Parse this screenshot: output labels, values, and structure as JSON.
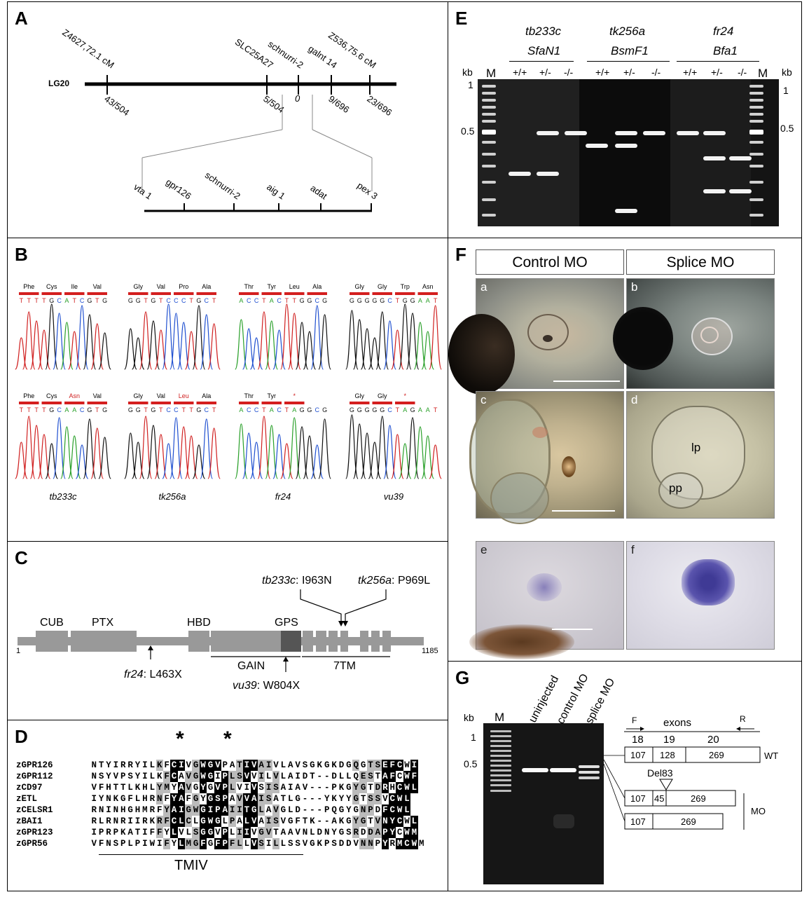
{
  "panelA": {
    "label": "A",
    "lg": "LG20",
    "topMarkers": [
      "Z4627,72.1 cM",
      "SLC25A27",
      "schnurri-2",
      "galnt 14",
      "Z536,75.6 cM"
    ],
    "bottomValues": [
      "43/504",
      "5/504",
      "0",
      "9/696",
      "23/696"
    ],
    "zoomGenes": [
      "vta 1",
      "gpr126",
      "schnurri-2",
      "aig 1",
      "adat",
      "pex 3"
    ]
  },
  "panelB": {
    "label": "B",
    "wtCodons": [
      [
        "Phe",
        "Cys",
        "Ile",
        "Val"
      ],
      [
        "Gly",
        "Val",
        "Pro",
        "Ala"
      ],
      [
        "Thr",
        "Tyr",
        "Leu",
        "Ala"
      ],
      [
        "Gly",
        "Gly",
        "Trp",
        "Asn"
      ]
    ],
    "wtSeqs": [
      "TTTTGCATCGTG",
      "GGTGTCCCTGCT",
      "ACCTACTTGGCG",
      "GGGGGCTGGAAT"
    ],
    "mutCodons": [
      [
        "Phe",
        "Cys",
        "Asn",
        "Val"
      ],
      [
        "Gly",
        "Val",
        "Leu",
        "Ala"
      ],
      [
        "Thr",
        "Tyr",
        "*"
      ],
      [
        "Gly",
        "Gly",
        "*"
      ]
    ],
    "mutSeqs": [
      "TTTTGCAACGTG",
      "GGTGTCCTTGCT",
      "ACCTACTAGGCG",
      "GGGGGCTAGAAT"
    ],
    "alleles": [
      "tb233c",
      "tk256a",
      "fr24",
      "vu39"
    ]
  },
  "panelC": {
    "label": "C",
    "domains": [
      "CUB",
      "PTX",
      "HBD",
      "GPS"
    ],
    "start": "1",
    "end": "1185",
    "gain": "GAIN",
    "tm": "7TM",
    "mut1_allele": "tb233c",
    "mut1_change": ": I963N",
    "mut2_allele": "tk256a",
    "mut2_change": ": P969L",
    "mut3_allele": "fr24",
    "mut3_change": ": L463X",
    "mut4_allele": "vu39",
    "mut4_change": ": W804X"
  },
  "panelD": {
    "label": "D",
    "rows": [
      {
        "name": "zGPR126",
        "seq": "NTYIRRYILKFCIVGWGVPATIVAIVLAVSGKGKDGQGTSEFCWI"
      },
      {
        "name": "zGPR112",
        "seq": "NSYVPSYILKFCAVGWGIPLSVVILVLAIDT--DLLQESTAFCWF"
      },
      {
        "name": "zCD97",
        "seq": "VFHTTLKHLYMYAVGYGVPLVIVSISAIAV---PKGYGTDRHCWL"
      },
      {
        "name": "zETL",
        "seq": "IYNKGFLHRNFYAFGYGSPAVVAISATLG---YKYYGTSSVCWL"
      },
      {
        "name": "zCELSR1",
        "seq": "RNINHGHMRFYAIGWGIPAIITGLAVGLD---PQGYGNPDFCWL"
      },
      {
        "name": "zBAI1",
        "seq": "RLRNRIIRKRFCLCLGWGLPALVAISVGFTK--AKGYGTVNYCWL"
      },
      {
        "name": "zGPR123",
        "seq": "IPRPKATIFFYLVLSGGVPLIIVGVTAAVNLDNYGSRDDAPYCWM"
      },
      {
        "name": "zGPR56",
        "seq": "VFNSPLPIWIFYLMGFGFPFLLVSILLSSVGKPSDDVNNPYRMCWM"
      }
    ],
    "star": "*",
    "tm": "TMIV"
  },
  "panelE": {
    "label": "E",
    "alleles": [
      [
        "tb233c",
        "SfaN1"
      ],
      [
        "tk256a",
        "BsmF1"
      ],
      [
        "fr24",
        "Bfa1"
      ]
    ],
    "genotypes": [
      "+/+",
      "+/-",
      "-/-"
    ],
    "ladder": "M",
    "kb": "kb",
    "ticksLeft": [
      "1",
      "0.5"
    ],
    "ticksRight": [
      "1",
      "0.5"
    ]
  },
  "panelF": {
    "label": "F",
    "headers": [
      "Control MO",
      "Splice MO"
    ],
    "subs": [
      "a",
      "b",
      "c",
      "d",
      "e",
      "f"
    ],
    "lp": "lp",
    "pp": "pp"
  },
  "panelG": {
    "label": "G",
    "kb": "kb",
    "ticks": [
      "1",
      "0.5"
    ],
    "lanes": [
      "M",
      "uninjected",
      "control MO",
      "splice MO"
    ],
    "primerF": "F",
    "primerR": "R",
    "exonsLabel": "exons",
    "exonNums": [
      "18",
      "19",
      "20"
    ],
    "wt": [
      "107",
      "128",
      "269"
    ],
    "wtLabel": "WT",
    "del": "Del83",
    "mo1": [
      "107",
      "45",
      "269"
    ],
    "mo2": [
      "107",
      "269"
    ],
    "moLabel": "MO"
  }
}
